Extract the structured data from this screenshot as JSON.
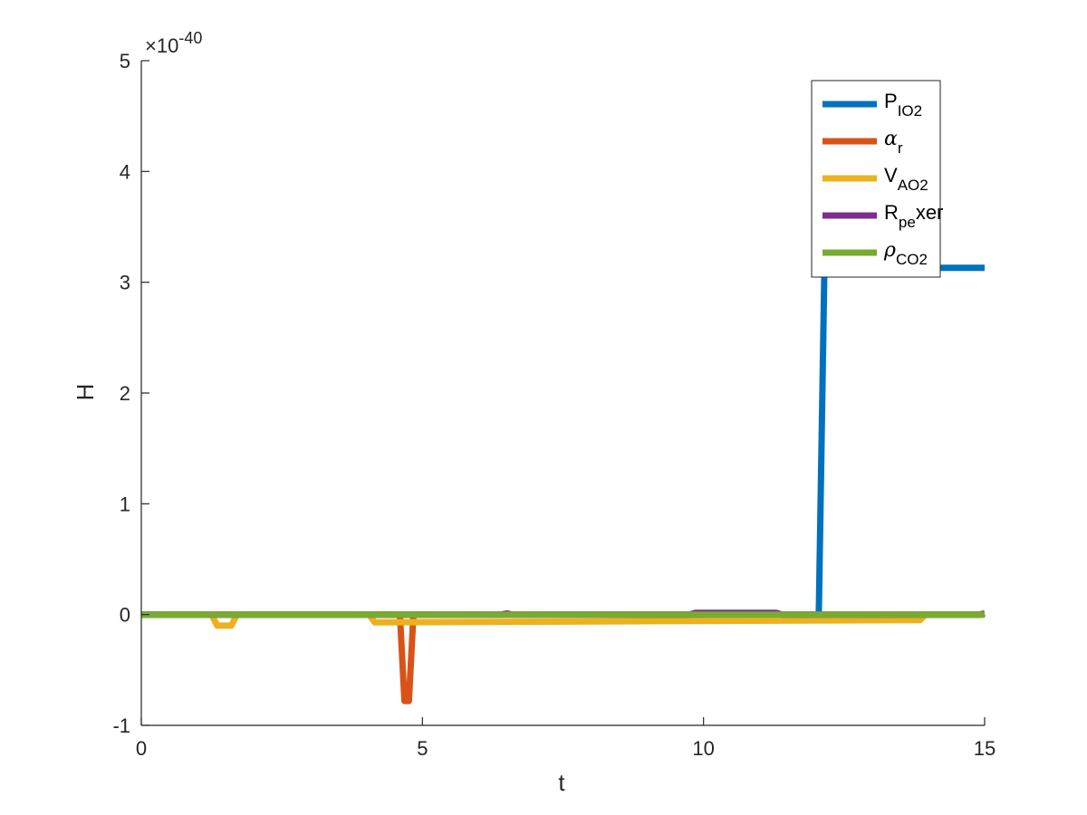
{
  "chart_data": {
    "type": "line",
    "title": "",
    "xlabel": "t",
    "ylabel": "H",
    "xlim": [
      0,
      15
    ],
    "ylim": [
      -1,
      5
    ],
    "x_ticks": [
      "0",
      "5",
      "10",
      "15"
    ],
    "y_ticks": [
      "-1",
      "0",
      "1",
      "2",
      "3",
      "4",
      "5"
    ],
    "y_multiplier": {
      "base": "×10",
      "exponent": "-40"
    },
    "grid": false,
    "box": false,
    "legend_position": "top-right",
    "series": [
      {
        "name_main": "P",
        "name_sub": "IO2",
        "name_suffix": "",
        "greek": false,
        "color": "#0072BD",
        "points": [
          [
            0,
            0
          ],
          [
            12.05,
            0
          ],
          [
            12.15,
            3.13
          ],
          [
            15,
            3.13
          ]
        ]
      },
      {
        "name_main": "α",
        "name_sub": "r",
        "name_suffix": "",
        "greek": true,
        "color": "#D95319",
        "points": [
          [
            0,
            0
          ],
          [
            4.6,
            0
          ],
          [
            4.68,
            -0.78
          ],
          [
            4.76,
            -0.78
          ],
          [
            4.84,
            0
          ],
          [
            15,
            0
          ]
        ]
      },
      {
        "name_main": "V",
        "name_sub": "AO2",
        "name_suffix": "",
        "greek": false,
        "color": "#EDB120",
        "points": [
          [
            0,
            0
          ],
          [
            1.25,
            0
          ],
          [
            1.35,
            -0.1
          ],
          [
            1.6,
            -0.1
          ],
          [
            1.7,
            0
          ],
          [
            4.05,
            0
          ],
          [
            4.15,
            -0.07
          ],
          [
            13.85,
            -0.05
          ],
          [
            13.95,
            0
          ],
          [
            15,
            0
          ]
        ]
      },
      {
        "name_main": "R",
        "name_sub": "pe",
        "name_suffix": "xer",
        "greek": false,
        "color": "#7E2F8E",
        "points": [
          [
            0,
            0
          ],
          [
            6.4,
            0
          ],
          [
            6.5,
            0.01
          ],
          [
            6.6,
            0
          ],
          [
            9.75,
            0
          ],
          [
            9.85,
            0.015
          ],
          [
            11.3,
            0.015
          ],
          [
            11.4,
            0
          ],
          [
            14.9,
            0
          ],
          [
            15,
            0.01
          ]
        ]
      },
      {
        "name_main": "ρ",
        "name_sub": "CO2",
        "name_suffix": "",
        "greek": true,
        "color": "#77AC30",
        "points": [
          [
            0,
            0
          ],
          [
            15,
            0
          ]
        ]
      }
    ]
  }
}
